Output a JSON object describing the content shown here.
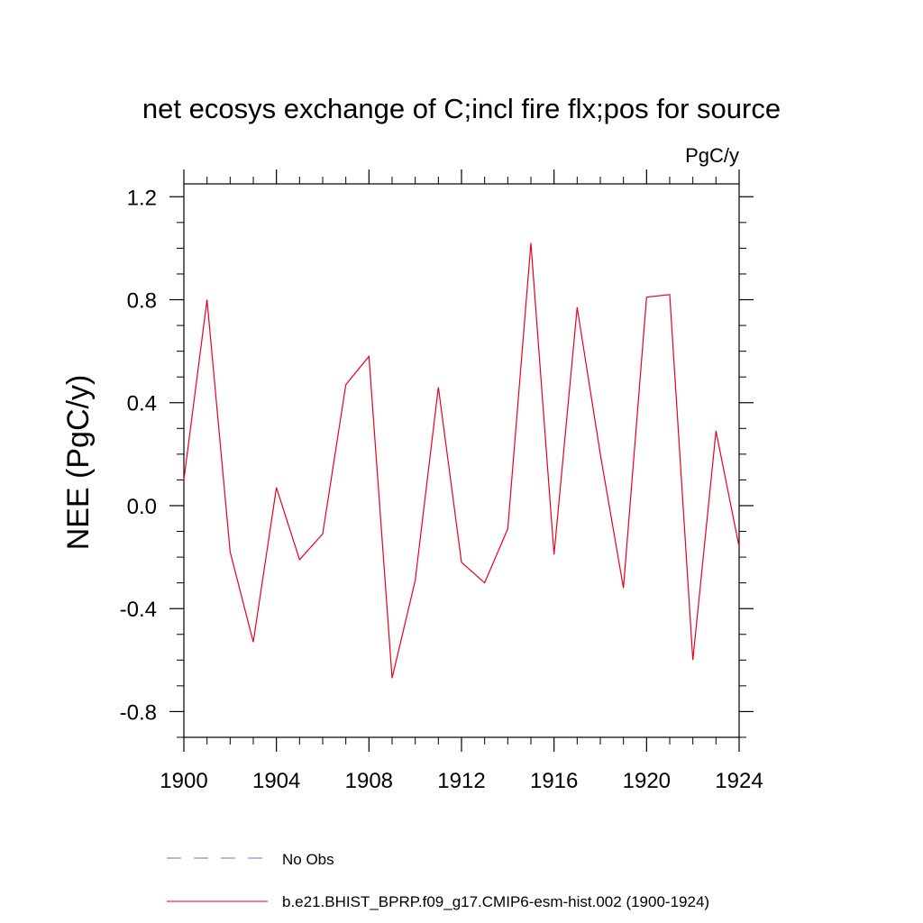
{
  "chart_data": {
    "type": "line",
    "title": "net ecosys exchange of C;incl fire flx;pos for source",
    "units_label": "PgC/y",
    "ylabel": "NEE  (PgC/y)",
    "xlabel": "",
    "xlim": [
      1900,
      1924
    ],
    "ylim": [
      -0.9,
      1.25
    ],
    "x_ticks": [
      1900,
      1904,
      1908,
      1912,
      1916,
      1920,
      1924
    ],
    "x_tick_labels": [
      "1900",
      "1904",
      "1908",
      "1912",
      "1916",
      "1920",
      "1924"
    ],
    "y_ticks": [
      -0.8,
      -0.4,
      0.0,
      0.4,
      0.8,
      1.2
    ],
    "y_tick_labels": [
      "-0.8",
      "-0.4",
      "0.0",
      "0.4",
      "0.8",
      "1.2"
    ],
    "grid": false,
    "legend_placement": "bottom",
    "series": [
      {
        "name": "No Obs",
        "color": "#7a6fc0",
        "dash": "dashed",
        "x": [],
        "values": []
      },
      {
        "name": "b.e21.BHIST_BPRP.f09_g17.CMIP6-esm-hist.002 (1900-1924)",
        "color": "#e8001c",
        "dash": "solid",
        "x": [
          1900,
          1901,
          1902,
          1903,
          1904,
          1905,
          1906,
          1907,
          1908,
          1909,
          1910,
          1911,
          1912,
          1913,
          1914,
          1915,
          1916,
          1917,
          1918,
          1919,
          1920,
          1921,
          1922,
          1923,
          1924
        ],
        "values": [
          0.1,
          0.8,
          -0.18,
          -0.53,
          0.07,
          -0.21,
          -0.11,
          0.47,
          0.58,
          -0.67,
          -0.29,
          0.46,
          -0.22,
          -0.3,
          -0.09,
          1.02,
          -0.19,
          0.77,
          0.2,
          -0.32,
          0.81,
          0.82,
          -0.6,
          0.29,
          -0.16
        ]
      }
    ]
  }
}
